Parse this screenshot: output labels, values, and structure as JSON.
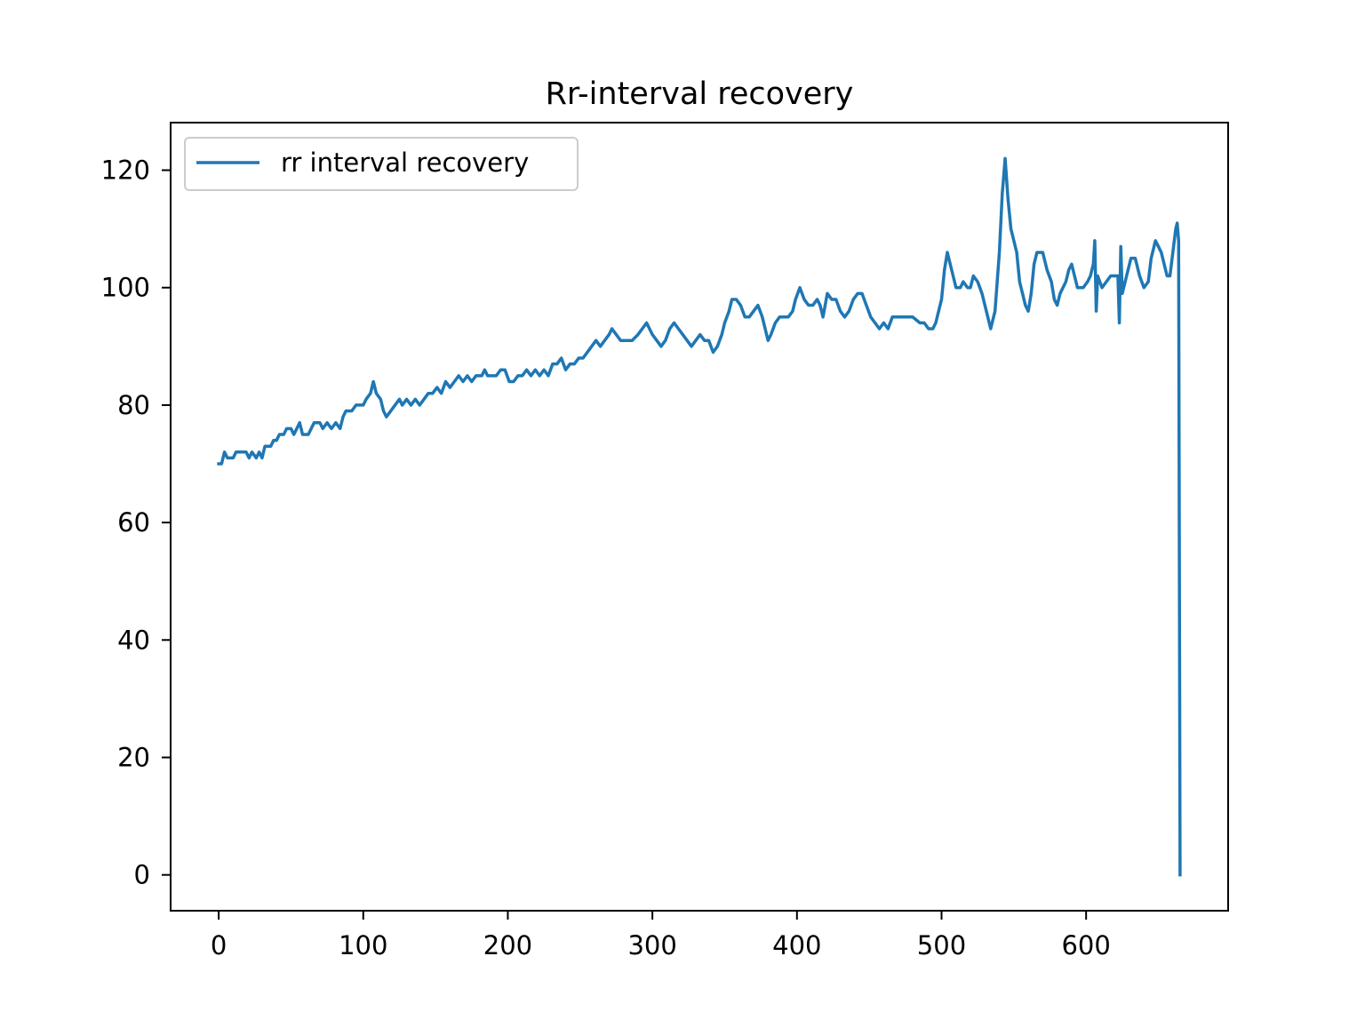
{
  "chart_data": {
    "type": "line",
    "title": "Rr-interval recovery",
    "xlabel": "",
    "ylabel": "",
    "xlim": [
      -33.25,
      698.25
    ],
    "ylim": [
      -6.1,
      128.1
    ],
    "xticks": [
      0,
      100,
      200,
      300,
      400,
      500,
      600
    ],
    "yticks": [
      0,
      20,
      40,
      60,
      80,
      100,
      120
    ],
    "xtick_labels": [
      "0",
      "100",
      "200",
      "300",
      "400",
      "500",
      "600"
    ],
    "ytick_labels": [
      "0",
      "20",
      "40",
      "60",
      "80",
      "100",
      "120"
    ],
    "grid": false,
    "legend": {
      "position": "top-left"
    },
    "series": [
      {
        "name": "rr interval recovery",
        "color": "#1f77b4",
        "points": [
          [
            0,
            70
          ],
          [
            2,
            70
          ],
          [
            4,
            72
          ],
          [
            6,
            71
          ],
          [
            10,
            71
          ],
          [
            12,
            72
          ],
          [
            16,
            72
          ],
          [
            19,
            72
          ],
          [
            21,
            71
          ],
          [
            23,
            72
          ],
          [
            26,
            71
          ],
          [
            28,
            72
          ],
          [
            30,
            71
          ],
          [
            32,
            73
          ],
          [
            36,
            73
          ],
          [
            38,
            74
          ],
          [
            40,
            74
          ],
          [
            42,
            75
          ],
          [
            45,
            75
          ],
          [
            47,
            76
          ],
          [
            50,
            76
          ],
          [
            52,
            75
          ],
          [
            54,
            76
          ],
          [
            56,
            77
          ],
          [
            58,
            75
          ],
          [
            62,
            75
          ],
          [
            64,
            76
          ],
          [
            66,
            77
          ],
          [
            70,
            77
          ],
          [
            72,
            76
          ],
          [
            75,
            77
          ],
          [
            78,
            76
          ],
          [
            81,
            77
          ],
          [
            84,
            76
          ],
          [
            86,
            78
          ],
          [
            88,
            79
          ],
          [
            92,
            79
          ],
          [
            95,
            80
          ],
          [
            100,
            80
          ],
          [
            102,
            81
          ],
          [
            105,
            82
          ],
          [
            107,
            84
          ],
          [
            109,
            82
          ],
          [
            112,
            81
          ],
          [
            114,
            79
          ],
          [
            116,
            78
          ],
          [
            119,
            79
          ],
          [
            122,
            80
          ],
          [
            125,
            81
          ],
          [
            127,
            80
          ],
          [
            130,
            81
          ],
          [
            133,
            80
          ],
          [
            136,
            81
          ],
          [
            139,
            80
          ],
          [
            142,
            81
          ],
          [
            145,
            82
          ],
          [
            148,
            82
          ],
          [
            151,
            83
          ],
          [
            154,
            82
          ],
          [
            157,
            84
          ],
          [
            160,
            83
          ],
          [
            163,
            84
          ],
          [
            166,
            85
          ],
          [
            169,
            84
          ],
          [
            172,
            85
          ],
          [
            175,
            84
          ],
          [
            178,
            85
          ],
          [
            182,
            85
          ],
          [
            184,
            86
          ],
          [
            186,
            85
          ],
          [
            189,
            85
          ],
          [
            192,
            85
          ],
          [
            195,
            86
          ],
          [
            198,
            86
          ],
          [
            201,
            84
          ],
          [
            204,
            84
          ],
          [
            207,
            85
          ],
          [
            210,
            85
          ],
          [
            213,
            86
          ],
          [
            216,
            85
          ],
          [
            219,
            86
          ],
          [
            222,
            85
          ],
          [
            225,
            86
          ],
          [
            228,
            85
          ],
          [
            231,
            87
          ],
          [
            234,
            87
          ],
          [
            237,
            88
          ],
          [
            240,
            86
          ],
          [
            243,
            87
          ],
          [
            246,
            87
          ],
          [
            249,
            88
          ],
          [
            252,
            88
          ],
          [
            255,
            89
          ],
          [
            258,
            90
          ],
          [
            261,
            91
          ],
          [
            264,
            90
          ],
          [
            267,
            91
          ],
          [
            270,
            92
          ],
          [
            272,
            93
          ],
          [
            275,
            92
          ],
          [
            278,
            91
          ],
          [
            282,
            91
          ],
          [
            286,
            91
          ],
          [
            290,
            92
          ],
          [
            293,
            93
          ],
          [
            296,
            94
          ],
          [
            300,
            92
          ],
          [
            303,
            91
          ],
          [
            306,
            90
          ],
          [
            309,
            91
          ],
          [
            312,
            93
          ],
          [
            315,
            94
          ],
          [
            318,
            93
          ],
          [
            321,
            92
          ],
          [
            324,
            91
          ],
          [
            327,
            90
          ],
          [
            330,
            91
          ],
          [
            333,
            92
          ],
          [
            336,
            91
          ],
          [
            339,
            91
          ],
          [
            342,
            89
          ],
          [
            345,
            90
          ],
          [
            348,
            92
          ],
          [
            350,
            94
          ],
          [
            353,
            96
          ],
          [
            355,
            98
          ],
          [
            358,
            98
          ],
          [
            361,
            97
          ],
          [
            364,
            95
          ],
          [
            367,
            95
          ],
          [
            370,
            96
          ],
          [
            373,
            97
          ],
          [
            376,
            95
          ],
          [
            378,
            93
          ],
          [
            380,
            91
          ],
          [
            382,
            92
          ],
          [
            385,
            94
          ],
          [
            388,
            95
          ],
          [
            391,
            95
          ],
          [
            394,
            95
          ],
          [
            397,
            96
          ],
          [
            399,
            98
          ],
          [
            402,
            100
          ],
          [
            405,
            98
          ],
          [
            408,
            97
          ],
          [
            411,
            97
          ],
          [
            414,
            98
          ],
          [
            416,
            97
          ],
          [
            418,
            95
          ],
          [
            421,
            99
          ],
          [
            424,
            98
          ],
          [
            427,
            98
          ],
          [
            430,
            96
          ],
          [
            433,
            95
          ],
          [
            436,
            96
          ],
          [
            439,
            98
          ],
          [
            442,
            99
          ],
          [
            445,
            99
          ],
          [
            448,
            97
          ],
          [
            451,
            95
          ],
          [
            454,
            94
          ],
          [
            457,
            93
          ],
          [
            460,
            94
          ],
          [
            463,
            93
          ],
          [
            466,
            95
          ],
          [
            470,
            95
          ],
          [
            475,
            95
          ],
          [
            480,
            95
          ],
          [
            485,
            94
          ],
          [
            488,
            94
          ],
          [
            491,
            93
          ],
          [
            494,
            93
          ],
          [
            496,
            94
          ],
          [
            498,
            96
          ],
          [
            500,
            98
          ],
          [
            502,
            103
          ],
          [
            504,
            106
          ],
          [
            506,
            104
          ],
          [
            508,
            102
          ],
          [
            510,
            100
          ],
          [
            513,
            100
          ],
          [
            515,
            101
          ],
          [
            518,
            100
          ],
          [
            520,
            100
          ],
          [
            522,
            102
          ],
          [
            525,
            101
          ],
          [
            528,
            99
          ],
          [
            530,
            97
          ],
          [
            532,
            95
          ],
          [
            534,
            93
          ],
          [
            537,
            96
          ],
          [
            540,
            106
          ],
          [
            542,
            116
          ],
          [
            544,
            122
          ],
          [
            546,
            115
          ],
          [
            548,
            110
          ],
          [
            550,
            108
          ],
          [
            552,
            106
          ],
          [
            554,
            101
          ],
          [
            556,
            99
          ],
          [
            558,
            97
          ],
          [
            560,
            96
          ],
          [
            562,
            99
          ],
          [
            564,
            104
          ],
          [
            566,
            106
          ],
          [
            570,
            106
          ],
          [
            573,
            103
          ],
          [
            576,
            101
          ],
          [
            578,
            98
          ],
          [
            580,
            97
          ],
          [
            582,
            99
          ],
          [
            584,
            100
          ],
          [
            586,
            101
          ],
          [
            588,
            103
          ],
          [
            590,
            104
          ],
          [
            592,
            102
          ],
          [
            594,
            100
          ],
          [
            598,
            100
          ],
          [
            601,
            101
          ],
          [
            603,
            102
          ],
          [
            605,
            104
          ],
          [
            606,
            108
          ],
          [
            607,
            96
          ],
          [
            608,
            102
          ],
          [
            611,
            100
          ],
          [
            614,
            101
          ],
          [
            617,
            102
          ],
          [
            620,
            102
          ],
          [
            622,
            102
          ],
          [
            623,
            94
          ],
          [
            624,
            107
          ],
          [
            625,
            99
          ],
          [
            627,
            101
          ],
          [
            629,
            103
          ],
          [
            631,
            105
          ],
          [
            634,
            105
          ],
          [
            637,
            102
          ],
          [
            640,
            100
          ],
          [
            643,
            101
          ],
          [
            645,
            105
          ],
          [
            648,
            108
          ],
          [
            650,
            107
          ],
          [
            652,
            106
          ],
          [
            654,
            104
          ],
          [
            656,
            102
          ],
          [
            658,
            102
          ],
          [
            660,
            106
          ],
          [
            662,
            110
          ],
          [
            663,
            111
          ],
          [
            664,
            108
          ],
          [
            665,
            0
          ]
        ]
      }
    ]
  }
}
